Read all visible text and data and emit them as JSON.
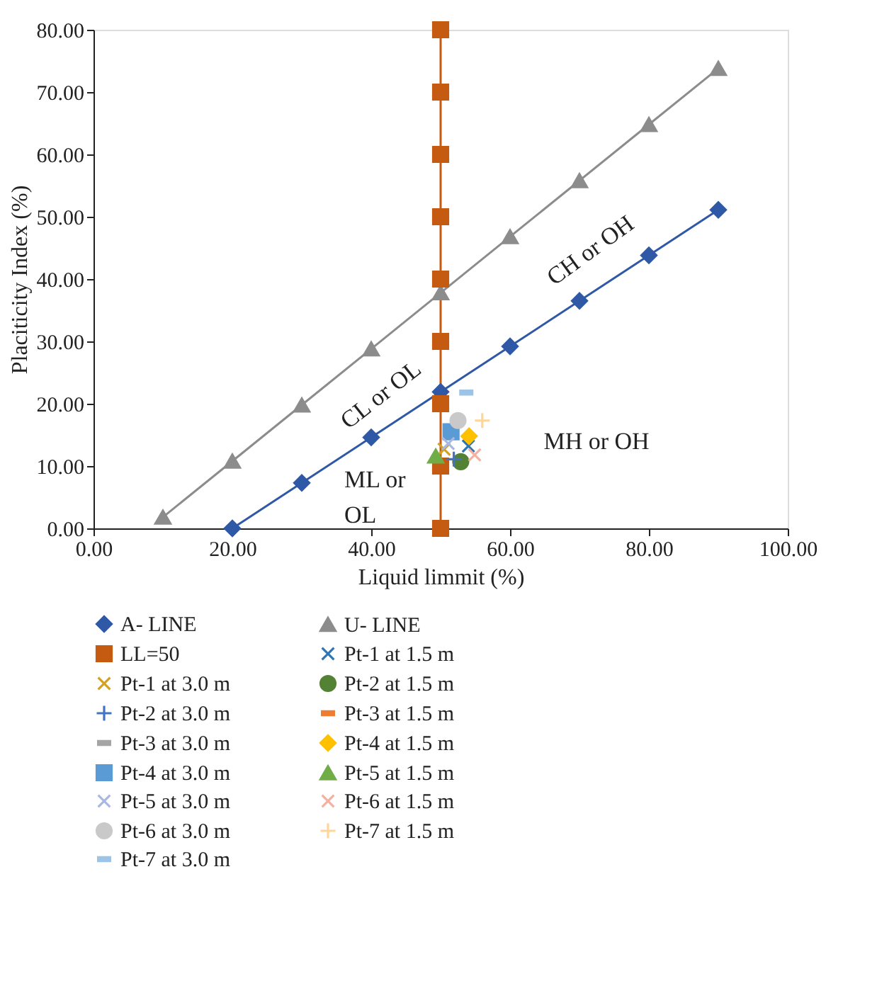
{
  "chart_data": {
    "type": "scatter",
    "xlabel": "Liquid limmit (%)",
    "ylabel": "Placiticity Index (%)",
    "xlim": [
      0,
      100
    ],
    "ylim": [
      0,
      80
    ],
    "xticks": [
      {
        "value": 0,
        "label": "0.00"
      },
      {
        "value": 20,
        "label": "20.00"
      },
      {
        "value": 40,
        "label": "40.00"
      },
      {
        "value": 60,
        "label": "60.00"
      },
      {
        "value": 80,
        "label": "80.00"
      },
      {
        "value": 100,
        "label": "100.00"
      }
    ],
    "yticks": [
      {
        "value": 0,
        "label": "0.00"
      },
      {
        "value": 10,
        "label": "10.00"
      },
      {
        "value": 20,
        "label": "20.00"
      },
      {
        "value": 30,
        "label": "30.00"
      },
      {
        "value": 40,
        "label": "40.00"
      },
      {
        "value": 50,
        "label": "50.00"
      },
      {
        "value": 60,
        "label": "60.00"
      },
      {
        "value": 70,
        "label": "70.00"
      },
      {
        "value": 80,
        "label": "80.00"
      }
    ],
    "grid": false,
    "legend": "bottom",
    "series": [
      {
        "name": "A- LINE",
        "type": "line",
        "marker": "diamond",
        "color": "#2f58a6",
        "x": [
          20,
          30,
          40,
          50,
          60,
          70,
          80,
          90
        ],
        "values": [
          0,
          7.3,
          14.6,
          21.9,
          29.2,
          36.5,
          43.8,
          51.1
        ]
      },
      {
        "name": "U- LINE",
        "type": "line",
        "marker": "triangle",
        "color": "#8c8c8c",
        "x": [
          10,
          20,
          30,
          40,
          50,
          60,
          70,
          80,
          90
        ],
        "values": [
          1.8,
          10.8,
          19.8,
          28.8,
          37.8,
          46.8,
          55.8,
          64.8,
          73.8
        ]
      },
      {
        "name": "LL=50",
        "type": "line",
        "marker": "square",
        "color": "#c55a11",
        "x": [
          50,
          50,
          50,
          50,
          50,
          50,
          50,
          50,
          50
        ],
        "values": [
          0,
          10,
          20,
          30,
          40,
          50,
          60,
          70,
          80
        ]
      },
      {
        "name": "Pt-1 at 1.5 m",
        "marker": "cross",
        "color": "#2e75b6",
        "x": [
          54.0
        ],
        "values": [
          13.2
        ]
      },
      {
        "name": "Pt-1 at 3.0 m",
        "marker": "cross",
        "color": "#d4a020",
        "x": [
          50.5
        ],
        "values": [
          12.7
        ]
      },
      {
        "name": "Pt-2 at 1.5 m",
        "marker": "circle",
        "color": "#548235",
        "x": [
          52.9
        ],
        "values": [
          10.7
        ]
      },
      {
        "name": "Pt-2 at 3.0 m",
        "marker": "plus",
        "color": "#4472c4",
        "x": [
          51.9
        ],
        "values": [
          11.1
        ]
      },
      {
        "name": "Pt-3 at 1.5 m",
        "color": "#ed7d31",
        "x": [
          null
        ],
        "values": [
          null
        ]
      },
      {
        "name": "Pt-3 at 3.0 m",
        "color": "#a5a5a5",
        "x": [
          null
        ],
        "values": [
          null
        ]
      },
      {
        "name": "Pt-4 at 1.5 m",
        "marker": "diamond",
        "color": "#ffc000",
        "x": [
          54.1
        ],
        "values": [
          14.8
        ]
      },
      {
        "name": "Pt-4 at 3.0 m",
        "marker": "square",
        "color": "#5b9bd5",
        "x": [
          51.5
        ],
        "values": [
          15.5
        ]
      },
      {
        "name": "Pt-5 at 1.5 m",
        "marker": "triangle",
        "color": "#70ad47",
        "x": [
          49.3
        ],
        "values": [
          11.6
        ]
      },
      {
        "name": "Pt-5 at 3.0 m",
        "marker": "cross",
        "color": "#a9b8e0",
        "x": [
          51.1
        ],
        "values": [
          13.6
        ]
      },
      {
        "name": "Pt-6 at 1.5 m",
        "marker": "cross",
        "color": "#f4b1a0",
        "x": [
          54.9
        ],
        "values": [
          11.8
        ]
      },
      {
        "name": "Pt-6 at 3.0 m",
        "marker": "circle",
        "color": "#c9c9c9",
        "x": [
          52.5
        ],
        "values": [
          17.3
        ]
      },
      {
        "name": "Pt-7 at 1.5 m",
        "marker": "plus",
        "color": "#ffd699",
        "x": [
          56.0
        ],
        "values": [
          17.3
        ]
      },
      {
        "name": "Pt-7 at 3.0 m",
        "color": "#9dc3e6",
        "x": [
          53.7
        ],
        "values": [
          21.8
        ]
      }
    ],
    "annotations": [
      "CL or OL",
      "CH or OH",
      "ML or\nOL",
      "MH or OH"
    ]
  }
}
